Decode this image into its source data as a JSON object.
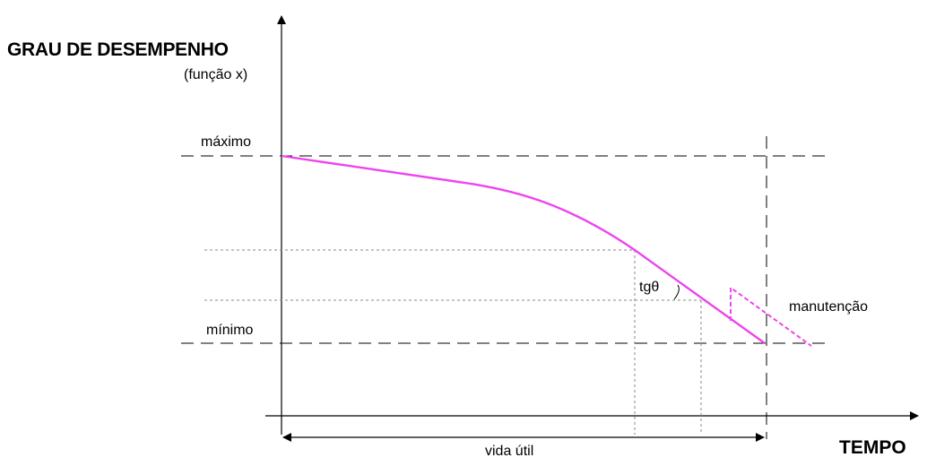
{
  "axis": {
    "y_title": "GRAU DE DESEMPENHO",
    "y_subtitle": "(função x)",
    "x_title": "TEMPO"
  },
  "levels": {
    "max_label": "máximo",
    "min_label": "mínimo"
  },
  "annotations": {
    "slope_label": "tgθ",
    "maintenance_label": "manutenção",
    "life_label": "vida útil"
  },
  "colors": {
    "curve": "#ee44ee",
    "lines": "#000000",
    "guides": "#888888"
  }
}
